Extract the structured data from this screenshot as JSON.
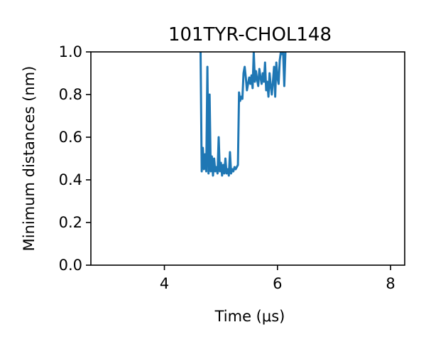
{
  "chart_data": {
    "type": "line",
    "title": "101TYR-CHOL148",
    "xlabel": "Time (μs)",
    "ylabel": "Minimum distances (nm)",
    "xlim": [
      2.7,
      8.25
    ],
    "ylim": [
      0.0,
      1.0
    ],
    "xticks": [
      4,
      6,
      8
    ],
    "xtick_labels": [
      "4",
      "6",
      "8"
    ],
    "yticks": [
      0.0,
      0.2,
      0.4,
      0.6,
      0.8,
      1.0
    ],
    "ytick_labels": [
      "0.0",
      "0.2",
      "0.4",
      "0.6",
      "0.8",
      "1.0"
    ],
    "grid": false,
    "series": [
      {
        "color": "#1f77b4",
        "x": [
          4.64,
          4.66,
          4.68,
          4.7,
          4.72,
          4.74,
          4.76,
          4.78,
          4.8,
          4.82,
          4.84,
          4.86,
          4.88,
          4.9,
          4.92,
          4.94,
          4.96,
          4.98,
          5.0,
          5.02,
          5.04,
          5.06,
          5.08,
          5.1,
          5.12,
          5.14,
          5.16,
          5.18,
          5.2,
          5.22,
          5.24,
          5.26,
          5.28,
          5.3,
          5.32,
          5.34,
          5.36,
          5.38,
          5.4,
          5.42,
          5.44,
          5.46,
          5.48,
          5.5,
          5.52,
          5.54,
          5.56,
          5.58,
          5.6,
          5.62,
          5.64,
          5.66,
          5.68,
          5.7,
          5.72,
          5.74,
          5.76,
          5.78,
          5.8,
          5.82,
          5.84,
          5.86,
          5.88,
          5.9,
          5.92,
          5.94,
          5.96,
          5.98,
          6.0,
          6.02,
          6.04,
          6.06,
          6.08,
          6.1,
          6.12,
          6.14
        ],
        "y": [
          1.0,
          0.44,
          0.55,
          0.45,
          0.52,
          0.44,
          0.93,
          0.43,
          0.8,
          0.44,
          0.51,
          0.42,
          0.5,
          0.44,
          0.46,
          0.43,
          0.6,
          0.44,
          0.48,
          0.42,
          0.47,
          0.43,
          0.5,
          0.43,
          0.45,
          0.42,
          0.53,
          0.43,
          0.45,
          0.44,
          0.46,
          0.45,
          0.46,
          0.47,
          0.81,
          0.77,
          0.79,
          0.78,
          0.9,
          0.93,
          0.88,
          0.82,
          0.85,
          0.88,
          0.85,
          0.89,
          0.83,
          1.0,
          0.86,
          0.91,
          0.87,
          0.84,
          0.92,
          0.88,
          0.85,
          0.9,
          0.86,
          0.95,
          0.82,
          0.86,
          0.79,
          0.9,
          0.84,
          0.8,
          0.86,
          0.93,
          0.79,
          0.95,
          0.88,
          0.85,
          0.96,
          1.0,
          0.99,
          1.0,
          0.84,
          1.0
        ]
      }
    ]
  }
}
